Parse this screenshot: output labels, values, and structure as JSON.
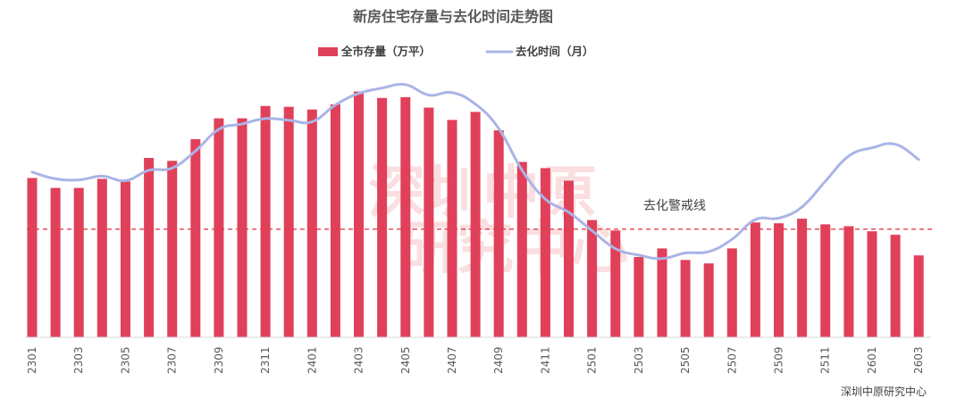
{
  "chart_data": {
    "type": "bar",
    "title": "新房住宅存量与去化时间走势图",
    "categories": [
      "2301",
      "2302",
      "2303",
      "2304",
      "2305",
      "2306",
      "2307",
      "2308",
      "2309",
      "2310",
      "2311",
      "2312",
      "2401",
      "2402",
      "2403",
      "2404",
      "2405",
      "2406",
      "2407",
      "2408",
      "2409",
      "2410",
      "2411",
      "2412",
      "2501",
      "2502",
      "2503",
      "2504",
      "2505",
      "2506",
      "2507",
      "2508",
      "2509",
      "2510",
      "2511",
      "2512",
      "2601",
      "2602",
      "2603"
    ],
    "tick_labels": [
      "2301",
      "",
      "2303",
      "",
      "2305",
      "",
      "2307",
      "",
      "2309",
      "",
      "2311",
      "",
      "2401",
      "",
      "2403",
      "",
      "2405",
      "",
      "2407",
      "",
      "2409",
      "",
      "2411",
      "",
      "2501",
      "",
      "2503",
      "",
      "2505",
      "",
      "2507",
      "",
      "2509",
      "",
      "2511",
      "",
      "2601",
      "",
      "2603"
    ],
    "series": [
      {
        "name": "全市存量（万平）",
        "kind": "bar",
        "color": "#e0405a",
        "values": [
          59.5,
          55.8,
          55.8,
          59.2,
          58.2,
          67.0,
          65.9,
          74.0,
          81.8,
          81.8,
          86.4,
          86.1,
          85.1,
          87.0,
          91.8,
          89.4,
          89.7,
          85.8,
          81.2,
          84.2,
          77.3,
          65.5,
          63.2,
          58.5,
          43.8,
          39.9,
          30.0,
          33.2,
          28.9,
          27.6,
          33.2,
          42.9,
          42.6,
          44.3,
          42.2,
          41.5,
          39.6,
          38.3,
          30.6
        ]
      },
      {
        "name": "去化时间（月）",
        "kind": "line",
        "color": "#aab4e6",
        "values": [
          61.7,
          59.2,
          58.8,
          60.2,
          58.5,
          62.4,
          63.2,
          69.6,
          77.7,
          79.7,
          81.7,
          81.1,
          80.5,
          86.8,
          91.1,
          93.1,
          94.4,
          90.5,
          91.4,
          87.1,
          78.0,
          62.4,
          51.6,
          46.7,
          39.8,
          33.1,
          30.7,
          29.4,
          31.5,
          32.0,
          36.6,
          44.0,
          44.5,
          48.7,
          58.3,
          67.7,
          70.8,
          72.1,
          66.4
        ]
      }
    ],
    "ylim": [
      0,
      100
    ],
    "xlabel": "",
    "ylabel": "",
    "grid": false,
    "legend_position": "top-center",
    "reference_line": {
      "label": "去化警戒线",
      "value": 40.4,
      "color": "#e0404a",
      "style": "dashed"
    },
    "source": "深圳中原研究中心",
    "watermark": [
      "深圳中原",
      "研究中心"
    ]
  }
}
